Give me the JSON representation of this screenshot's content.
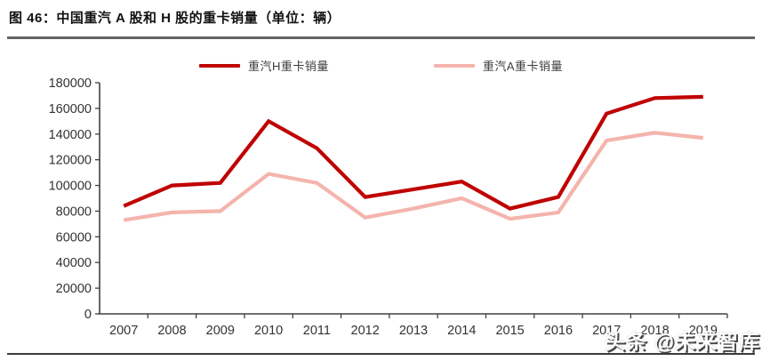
{
  "header": {
    "title": "图 46：中国重汽 A 股和 H 股的重卡销量（单位：辆）"
  },
  "watermark": {
    "text": "头条 @未来智库"
  },
  "colors": {
    "series_h": "#C00000",
    "series_a": "#F4B4AC",
    "divider": "#636363",
    "axis": "#404040",
    "tick_text": "#333333"
  },
  "chart_data": {
    "type": "line",
    "title": "中国重汽 A 股和 H 股的重卡销量",
    "unit": "辆",
    "categories": [
      "2007",
      "2008",
      "2009",
      "2010",
      "2011",
      "2012",
      "2013",
      "2014",
      "2015",
      "2016",
      "2017",
      "2018",
      "2019"
    ],
    "series": [
      {
        "name": "重汽H重卡销量",
        "color": "#C00000",
        "values": [
          84000,
          100000,
          102000,
          150000,
          129000,
          91000,
          97000,
          103000,
          82000,
          91000,
          156000,
          168000,
          169000
        ]
      },
      {
        "name": "重汽A重卡销量",
        "color": "#F4B4AC",
        "values": [
          73000,
          79000,
          80000,
          109000,
          102000,
          75000,
          82000,
          90000,
          74000,
          79000,
          135000,
          141000,
          137000
        ]
      }
    ],
    "xlabel": "",
    "ylabel": "",
    "ylim": [
      0,
      180000
    ],
    "ytick_step": 20000,
    "ytick_labels": [
      "0",
      "20000",
      "40000",
      "60000",
      "80000",
      "100000",
      "120000",
      "140000",
      "160000",
      "180000"
    ],
    "grid": false,
    "legend_position": "top"
  }
}
